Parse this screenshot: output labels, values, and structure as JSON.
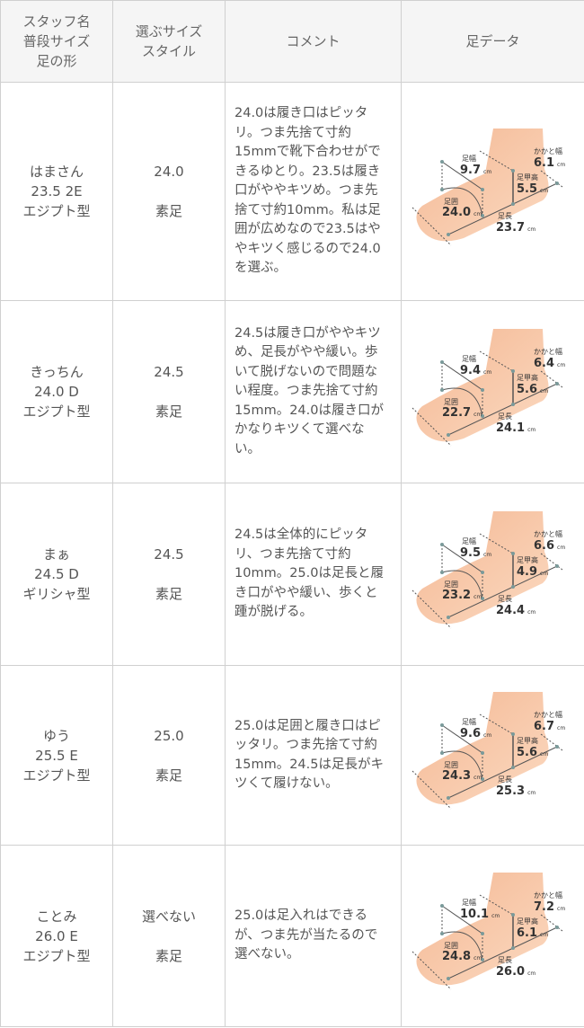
{
  "header": {
    "staff": [
      "スタッフ名",
      "普段サイズ",
      "足の形"
    ],
    "size": [
      "選ぶサイズ",
      "スタイル"
    ],
    "comment": "コメント",
    "foot": "足データ"
  },
  "labels": {
    "width": "足幅",
    "heel": "かかと幅",
    "instep": "足甲高",
    "girth": "足囲",
    "length": "足長",
    "unit": "cm"
  },
  "colors": {
    "skin": "#f6c3a0",
    "border": "#d0d0d0",
    "header_bg": "#f5f5f5"
  },
  "rows": [
    {
      "name": "はまさん",
      "usual": "23.5 2E",
      "shape": "エジプト型",
      "chosen": "24.0",
      "style": "素足",
      "comment": "24.0は履き口はピッタリ。つま先捨て寸約15mmで靴下合わせができるゆとり。23.5は履き口がややキツめ。つま先捨て寸約10mm。私は足囲が広めなので23.5はややキツく感じるので24.0を選ぶ。",
      "foot": {
        "width": "9.7",
        "heel": "6.1",
        "instep": "5.5",
        "girth": "24.0",
        "length": "23.7"
      }
    },
    {
      "name": "きっちん",
      "usual": "24.0 D",
      "shape": "エジプト型",
      "chosen": "24.5",
      "style": "素足",
      "comment": "24.5は履き口がややキツめ、足長がやや緩い。歩いて脱げないので問題ない程度。つま先捨て寸約15mm。24.0は履き口がかなりキツくて選べない。",
      "foot": {
        "width": "9.4",
        "heel": "6.4",
        "instep": "5.6",
        "girth": "22.7",
        "length": "24.1"
      }
    },
    {
      "name": "まぁ",
      "usual": "24.5 D",
      "shape": "ギリシャ型",
      "chosen": "24.5",
      "style": "素足",
      "comment": "24.5は全体的にピッタリ、つま先捨て寸約10mm。25.0は足長と履き口がやや緩い、歩くと踵が脱げる。",
      "foot": {
        "width": "9.5",
        "heel": "6.6",
        "instep": "4.9",
        "girth": "23.2",
        "length": "24.4"
      }
    },
    {
      "name": "ゆう",
      "usual": "25.5 E",
      "shape": "エジプト型",
      "chosen": "25.0",
      "style": "素足",
      "comment": "25.0は足囲と履き口はピッタリ。つま先捨て寸約15mm。24.5は足長がキツくて履けない。",
      "foot": {
        "width": "9.6",
        "heel": "6.7",
        "instep": "5.6",
        "girth": "24.3",
        "length": "25.3"
      }
    },
    {
      "name": "ことみ",
      "usual": "26.0 E",
      "shape": "エジプト型",
      "chosen": "選べない",
      "style": "素足",
      "comment": "25.0は足入れはできるが、つま先が当たるので選べない。",
      "foot": {
        "width": "10.1",
        "heel": "7.2",
        "instep": "6.1",
        "girth": "24.8",
        "length": "26.0"
      }
    }
  ]
}
